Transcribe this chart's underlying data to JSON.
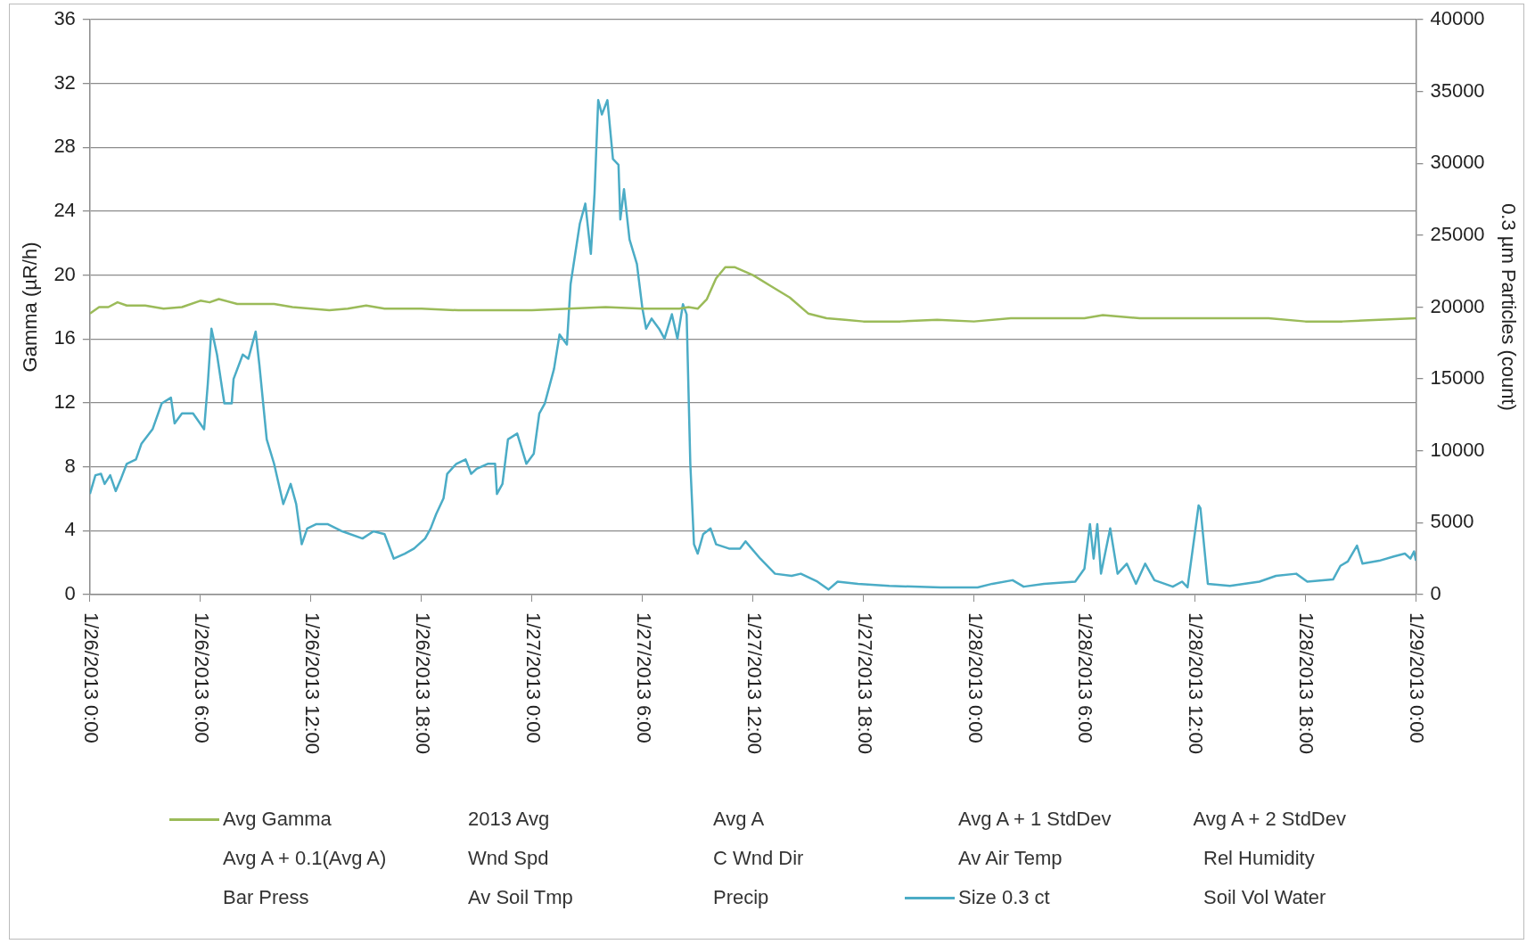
{
  "chart_data": {
    "type": "line",
    "ylabel": "Gamma (µR/h)",
    "y2label": "0.3 µm Particles (count)",
    "xlim": [
      "2013-01-26T00:00",
      "2013-01-29T00:00"
    ],
    "xticks": [
      {
        "value": "2013-01-26T00:00",
        "label": "1/26/2013 0:00"
      },
      {
        "value": "2013-01-26T06:00",
        "label": "1/26/2013 6:00"
      },
      {
        "value": "2013-01-26T12:00",
        "label": "1/26/2013 12:00"
      },
      {
        "value": "2013-01-26T18:00",
        "label": "1/26/2013 18:00"
      },
      {
        "value": "2013-01-27T00:00",
        "label": "1/27/2013 0:00"
      },
      {
        "value": "2013-01-27T06:00",
        "label": "1/27/2013 6:00"
      },
      {
        "value": "2013-01-27T12:00",
        "label": "1/27/2013 12:00"
      },
      {
        "value": "2013-01-27T18:00",
        "label": "1/27/2013 18:00"
      },
      {
        "value": "2013-01-28T00:00",
        "label": "1/28/2013 0:00"
      },
      {
        "value": "2013-01-28T06:00",
        "label": "1/28/2013 6:00"
      },
      {
        "value": "2013-01-28T12:00",
        "label": "1/28/2013 12:00"
      },
      {
        "value": "2013-01-28T18:00",
        "label": "1/28/2013 18:00"
      },
      {
        "value": "2013-01-29T00:00",
        "label": "1/29/2013 0:00"
      }
    ],
    "ylim": [
      0,
      36
    ],
    "yticks": [
      0,
      4,
      8,
      12,
      16,
      20,
      24,
      28,
      32,
      36
    ],
    "y2lim": [
      0,
      40000
    ],
    "y2ticks": [
      0,
      5000,
      10000,
      15000,
      20000,
      25000,
      30000,
      35000,
      40000
    ],
    "grid": "y",
    "legend": "bottom",
    "marker": "none",
    "line_style": "solid",
    "series": [
      {
        "name": "Avg Gamma",
        "color": "#9bbb59",
        "x": [
          "2013-01-26T00:00",
          "2013-01-26T00:30",
          "2013-01-26T01:00",
          "2013-01-26T01:30",
          "2013-01-26T02:00",
          "2013-01-26T03:00",
          "2013-01-26T04:00",
          "2013-01-26T05:00",
          "2013-01-26T06:00",
          "2013-01-26T06:30",
          "2013-01-26T07:00",
          "2013-01-26T08:00",
          "2013-01-26T09:00",
          "2013-01-26T10:00",
          "2013-01-26T11:00",
          "2013-01-26T12:00",
          "2013-01-26T13:00",
          "2013-01-26T14:00",
          "2013-01-26T15:00",
          "2013-01-26T16:00",
          "2013-01-26T17:00",
          "2013-01-26T18:00",
          "2013-01-26T20:00",
          "2013-01-26T22:00",
          "2013-01-27T00:00",
          "2013-01-27T02:00",
          "2013-01-27T04:00",
          "2013-01-27T06:00",
          "2013-01-27T08:00",
          "2013-01-27T08:30",
          "2013-01-27T09:00",
          "2013-01-27T09:30",
          "2013-01-27T10:00",
          "2013-01-27T10:30",
          "2013-01-27T11:00",
          "2013-01-27T12:00",
          "2013-01-27T13:00",
          "2013-01-27T14:00",
          "2013-01-27T15:00",
          "2013-01-27T16:00",
          "2013-01-27T17:00",
          "2013-01-27T18:00",
          "2013-01-27T20:00",
          "2013-01-27T22:00",
          "2013-01-28T00:00",
          "2013-01-28T02:00",
          "2013-01-28T04:00",
          "2013-01-28T06:00",
          "2013-01-28T07:00",
          "2013-01-28T09:00",
          "2013-01-28T12:00",
          "2013-01-28T14:00",
          "2013-01-28T16:00",
          "2013-01-28T18:00",
          "2013-01-28T20:00",
          "2013-01-28T22:00",
          "2013-01-29T00:00"
        ],
        "values": [
          17.6,
          18.0,
          18.0,
          18.3,
          18.1,
          18.1,
          17.9,
          18.0,
          18.4,
          18.3,
          18.5,
          18.2,
          18.2,
          18.2,
          18.0,
          17.9,
          17.8,
          17.9,
          18.1,
          17.9,
          17.9,
          17.9,
          17.8,
          17.8,
          17.8,
          17.9,
          18.0,
          17.9,
          17.9,
          18.0,
          17.9,
          18.5,
          19.8,
          20.5,
          20.5,
          20.0,
          19.3,
          18.6,
          17.6,
          17.3,
          17.2,
          17.1,
          17.1,
          17.2,
          17.1,
          17.3,
          17.3,
          17.3,
          17.5,
          17.3,
          17.3,
          17.3,
          17.3,
          17.1,
          17.1,
          17.2,
          17.3
        ]
      },
      {
        "name": "2013 Avg"
      },
      {
        "name": "Avg A"
      },
      {
        "name": "Avg A + 1 StdDev"
      },
      {
        "name": "Avg A + 2 StdDev"
      },
      {
        "name": "Avg A + 0.1(Avg A)"
      },
      {
        "name": "Wnd Spd"
      },
      {
        "name": "C Wnd Dir"
      },
      {
        "name": "Av Air Temp"
      },
      {
        "name": "Rel Humidity"
      },
      {
        "name": "Bar Press"
      },
      {
        "name": "Av Soil Tmp"
      },
      {
        "name": "Precip"
      },
      {
        "name": "Size 0.3 ct",
        "color": "#4bacc6",
        "axis": "y2",
        "x": [
          "2013-01-26T00:00",
          "2013-01-26T00:18",
          "2013-01-26T00:36",
          "2013-01-26T00:48",
          "2013-01-26T01:06",
          "2013-01-26T01:24",
          "2013-01-26T01:42",
          "2013-01-26T02:00",
          "2013-01-26T02:30",
          "2013-01-26T02:48",
          "2013-01-26T03:24",
          "2013-01-26T03:54",
          "2013-01-26T04:24",
          "2013-01-26T04:36",
          "2013-01-26T05:00",
          "2013-01-26T05:36",
          "2013-01-26T06:12",
          "2013-01-26T06:24",
          "2013-01-26T06:36",
          "2013-01-26T06:54",
          "2013-01-26T07:18",
          "2013-01-26T07:42",
          "2013-01-26T07:48",
          "2013-01-26T08:18",
          "2013-01-26T08:36",
          "2013-01-26T09:00",
          "2013-01-26T09:12",
          "2013-01-26T09:36",
          "2013-01-26T10:00",
          "2013-01-26T10:30",
          "2013-01-26T10:54",
          "2013-01-26T11:12",
          "2013-01-26T11:30",
          "2013-01-26T11:48",
          "2013-01-26T12:18",
          "2013-01-26T12:54",
          "2013-01-26T13:42",
          "2013-01-26T14:48",
          "2013-01-26T15:24",
          "2013-01-26T16:00",
          "2013-01-26T16:30",
          "2013-01-26T17:06",
          "2013-01-26T17:36",
          "2013-01-26T18:12",
          "2013-01-26T18:30",
          "2013-01-26T18:48",
          "2013-01-26T19:12",
          "2013-01-26T19:24",
          "2013-01-26T19:54",
          "2013-01-26T20:24",
          "2013-01-26T20:42",
          "2013-01-26T21:00",
          "2013-01-26T21:36",
          "2013-01-26T22:00",
          "2013-01-26T22:06",
          "2013-01-26T22:24",
          "2013-01-26T22:42",
          "2013-01-26T23:12",
          "2013-01-26T23:42",
          "2013-01-27T00:06",
          "2013-01-27T00:24",
          "2013-01-27T00:42",
          "2013-01-27T01:12",
          "2013-01-27T01:30",
          "2013-01-27T01:54",
          "2013-01-27T02:06",
          "2013-01-27T02:36",
          "2013-01-27T02:54",
          "2013-01-27T03:12",
          "2013-01-27T03:24",
          "2013-01-27T03:36",
          "2013-01-27T03:48",
          "2013-01-27T04:06",
          "2013-01-27T04:24",
          "2013-01-27T04:42",
          "2013-01-27T04:48",
          "2013-01-27T05:00",
          "2013-01-27T05:18",
          "2013-01-27T05:42",
          "2013-01-27T06:00",
          "2013-01-27T06:12",
          "2013-01-27T06:30",
          "2013-01-27T06:54",
          "2013-01-27T07:12",
          "2013-01-27T07:36",
          "2013-01-27T07:54",
          "2013-01-27T08:12",
          "2013-01-27T08:24",
          "2013-01-27T08:36",
          "2013-01-27T08:48",
          "2013-01-27T09:00",
          "2013-01-27T09:18",
          "2013-01-27T09:42",
          "2013-01-27T10:00",
          "2013-01-27T10:42",
          "2013-01-27T11:18",
          "2013-01-27T11:36",
          "2013-01-27T12:24",
          "2013-01-27T13:12",
          "2013-01-27T14:06",
          "2013-01-27T14:36",
          "2013-01-27T15:30",
          "2013-01-27T16:06",
          "2013-01-27T16:36",
          "2013-01-27T17:42",
          "2013-01-27T19:24",
          "2013-01-27T22:12",
          "2013-01-28T00:12",
          "2013-01-28T01:00",
          "2013-01-28T02:06",
          "2013-01-28T02:42",
          "2013-01-28T03:48",
          "2013-01-28T05:30",
          "2013-01-28T06:00",
          "2013-01-28T06:18",
          "2013-01-28T06:30",
          "2013-01-28T06:42",
          "2013-01-28T06:54",
          "2013-01-28T07:24",
          "2013-01-28T07:48",
          "2013-01-28T08:18",
          "2013-01-28T08:48",
          "2013-01-28T09:18",
          "2013-01-28T09:48",
          "2013-01-28T10:48",
          "2013-01-28T11:18",
          "2013-01-28T11:36",
          "2013-01-28T12:12",
          "2013-01-28T12:18",
          "2013-01-28T12:42",
          "2013-01-28T13:54",
          "2013-01-28T15:30",
          "2013-01-28T16:24",
          "2013-01-28T17:30",
          "2013-01-28T18:06",
          "2013-01-28T19:30",
          "2013-01-28T19:54",
          "2013-01-28T20:18",
          "2013-01-28T20:48",
          "2013-01-28T21:06",
          "2013-01-28T22:00",
          "2013-01-28T22:48",
          "2013-01-28T23:24",
          "2013-01-28T23:42",
          "2013-01-28T23:54",
          "2013-01-29T00:00"
        ],
        "values": [
          7000,
          8300,
          8400,
          7700,
          8300,
          7200,
          8100,
          9100,
          9400,
          10500,
          11500,
          13300,
          13700,
          11900,
          12600,
          12600,
          11500,
          14650,
          18500,
          16700,
          13300,
          13300,
          15000,
          16700,
          16400,
          18300,
          16000,
          10800,
          9100,
          6300,
          7700,
          6300,
          3500,
          4600,
          4900,
          4900,
          4400,
          3900,
          4400,
          4200,
          2500,
          2850,
          3200,
          3900,
          4600,
          5600,
          6700,
          8400,
          9100,
          9400,
          8400,
          8750,
          9100,
          9100,
          7000,
          7700,
          10800,
          11200,
          9100,
          9800,
          12600,
          13300,
          15700,
          18100,
          17400,
          21600,
          25800,
          27200,
          23700,
          27900,
          34400,
          33400,
          34400,
          30300,
          29900,
          26100,
          28200,
          24700,
          23000,
          19900,
          18500,
          19200,
          18500,
          17800,
          19500,
          17800,
          20200,
          19500,
          9100,
          3500,
          2850,
          4200,
          4600,
          3500,
          3200,
          3200,
          3700,
          2500,
          1450,
          1300,
          1450,
          900,
          350,
          900,
          750,
          600,
          500,
          500,
          750,
          1000,
          550,
          750,
          900,
          1800,
          4900,
          2500,
          4900,
          1450,
          4600,
          1450,
          2150,
          750,
          2150,
          1000,
          550,
          900,
          500,
          6200,
          6000,
          750,
          600,
          900,
          1300,
          1450,
          900,
          1050,
          2000,
          2300,
          3400,
          2150,
          2350,
          2650,
          2850,
          2500,
          3000,
          2350
        ]
      },
      {
        "name": "Soil Vol Water"
      }
    ]
  }
}
